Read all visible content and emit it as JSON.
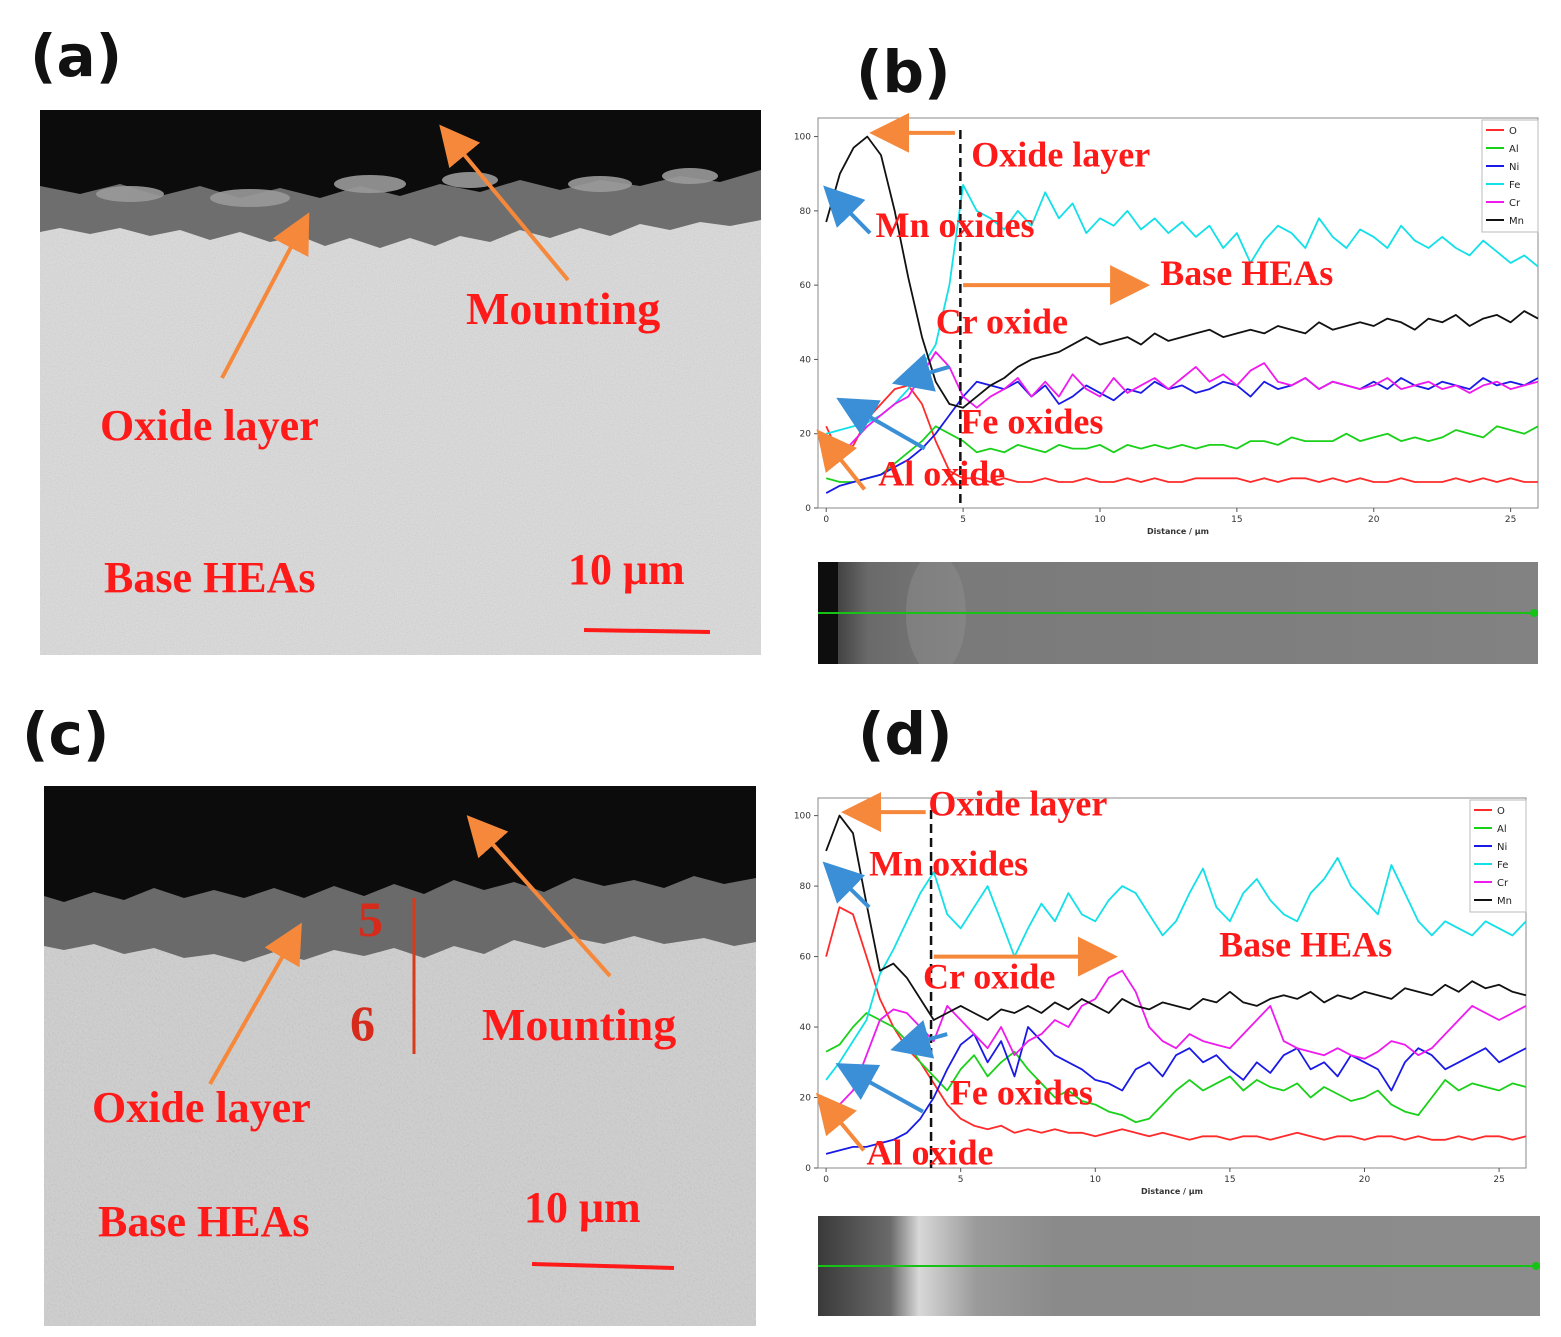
{
  "panels": {
    "a": {
      "label": "(a)",
      "annotations": {
        "mounting": "Mounting",
        "oxide_layer": "Oxide layer",
        "base": "Base HEAs",
        "scale": "10 μm"
      }
    },
    "b": {
      "label": "(b)"
    },
    "c": {
      "label": "(c)",
      "annotations": {
        "mounting": "Mounting",
        "oxide_layer": "Oxide layer",
        "base": "Base HEAs",
        "scale": "10 μm",
        "point5": "5",
        "point6": "6"
      }
    },
    "d": {
      "label": "(d)"
    }
  },
  "colors": {
    "annotation": "#ff1a1a",
    "arrow_orange": "#f5883a",
    "arrow_blue": "#3a8fd6"
  },
  "chart_data": [
    {
      "type": "line",
      "panel": "b",
      "xlabel": "Distance / μm",
      "ylabel": "",
      "xlim": [
        -0.3,
        26
      ],
      "ylim": [
        0,
        105
      ],
      "xticks": [
        0,
        5,
        10,
        15,
        20,
        25
      ],
      "yticks": [
        0,
        20,
        40,
        60,
        80,
        100
      ],
      "boundary_x": 4.9,
      "legend_position": "top-right",
      "x": [
        0,
        0.5,
        1,
        1.5,
        2,
        2.5,
        3,
        3.5,
        4,
        4.5,
        5,
        5.5,
        6,
        6.5,
        7,
        7.5,
        8,
        8.5,
        9,
        9.5,
        10,
        10.5,
        11,
        11.5,
        12,
        12.5,
        13,
        13.5,
        14,
        14.5,
        15,
        15.5,
        16,
        16.5,
        17,
        17.5,
        18,
        18.5,
        19,
        19.5,
        20,
        20.5,
        21,
        21.5,
        22,
        22.5,
        23,
        23.5,
        24,
        24.5,
        25,
        25.5,
        26
      ],
      "series": [
        {
          "name": "O",
          "color": "#ff2a2a",
          "values": [
            22,
            14,
            17,
            24,
            28,
            32,
            33,
            28,
            18,
            10,
            8,
            8,
            7,
            8,
            7,
            7,
            8,
            7,
            7,
            8,
            7,
            7,
            8,
            7,
            8,
            7,
            7,
            8,
            8,
            8,
            8,
            7,
            8,
            7,
            8,
            8,
            7,
            8,
            7,
            8,
            7,
            7,
            8,
            7,
            7,
            7,
            8,
            7,
            8,
            7,
            8,
            7,
            7
          ]
        },
        {
          "name": "Al",
          "color": "#1ad11a",
          "values": [
            8,
            7,
            7,
            8,
            9,
            12,
            15,
            18,
            22,
            20,
            18,
            15,
            16,
            15,
            17,
            16,
            15,
            17,
            16,
            16,
            17,
            15,
            17,
            16,
            17,
            16,
            17,
            16,
            17,
            17,
            16,
            18,
            18,
            17,
            19,
            18,
            18,
            18,
            20,
            18,
            19,
            20,
            18,
            19,
            18,
            19,
            21,
            20,
            19,
            22,
            21,
            20,
            22
          ]
        },
        {
          "name": "Ni",
          "color": "#1a1ae6",
          "values": [
            4,
            6,
            7,
            8,
            9,
            11,
            13,
            16,
            20,
            25,
            30,
            34,
            33,
            32,
            34,
            30,
            33,
            28,
            30,
            33,
            31,
            29,
            32,
            31,
            34,
            32,
            33,
            31,
            32,
            34,
            33,
            30,
            34,
            32,
            33,
            35,
            32,
            34,
            33,
            32,
            34,
            32,
            35,
            33,
            32,
            34,
            33,
            32,
            35,
            33,
            34,
            33,
            35
          ]
        },
        {
          "name": "Fe",
          "color": "#12e0e8",
          "values": [
            20,
            21,
            22,
            23,
            25,
            28,
            32,
            38,
            44,
            60,
            87,
            80,
            78,
            75,
            80,
            76,
            85,
            78,
            82,
            74,
            78,
            76,
            80,
            75,
            78,
            74,
            77,
            73,
            76,
            70,
            74,
            66,
            72,
            76,
            74,
            70,
            78,
            73,
            70,
            75,
            73,
            70,
            76,
            72,
            70,
            73,
            70,
            68,
            72,
            69,
            66,
            68,
            65
          ]
        },
        {
          "name": "Cr",
          "color": "#ee1aee",
          "values": [
            12,
            14,
            18,
            22,
            25,
            28,
            30,
            36,
            42,
            38,
            30,
            27,
            30,
            32,
            35,
            30,
            34,
            30,
            36,
            32,
            30,
            35,
            31,
            33,
            35,
            32,
            35,
            38,
            34,
            36,
            33,
            37,
            39,
            34,
            33,
            35,
            32,
            34,
            33,
            32,
            33,
            35,
            32,
            33,
            34,
            32,
            33,
            31,
            33,
            34,
            32,
            33,
            34
          ]
        },
        {
          "name": "Mn",
          "color": "#111111",
          "values": [
            77,
            90,
            97,
            100,
            95,
            80,
            62,
            46,
            34,
            28,
            27,
            30,
            33,
            35,
            38,
            40,
            41,
            42,
            44,
            46,
            44,
            45,
            46,
            44,
            47,
            45,
            46,
            47,
            48,
            46,
            47,
            48,
            47,
            49,
            48,
            47,
            50,
            48,
            49,
            50,
            49,
            51,
            50,
            48,
            51,
            50,
            52,
            49,
            51,
            52,
            50,
            53,
            51
          ]
        }
      ],
      "annotations": [
        {
          "text": "Oxide layer",
          "x": 5.3,
          "y": 92
        },
        {
          "text": "Mn oxides",
          "x": 1.8,
          "y": 73
        },
        {
          "text": "Base HEAs",
          "x": 12.2,
          "y": 60
        },
        {
          "text": "Cr oxide",
          "x": 4.0,
          "y": 47
        },
        {
          "text": "Fe oxides",
          "x": 4.9,
          "y": 20
        },
        {
          "text": "Al oxide",
          "x": 1.9,
          "y": 6
        }
      ]
    },
    {
      "type": "line",
      "panel": "d",
      "xlabel": "Distance / μm",
      "ylabel": "",
      "xlim": [
        -0.3,
        26
      ],
      "ylim": [
        0,
        105
      ],
      "xticks": [
        0,
        5,
        10,
        15,
        20,
        25
      ],
      "yticks": [
        0,
        20,
        40,
        60,
        80,
        100
      ],
      "boundary_x": 3.9,
      "legend_position": "top-right",
      "x": [
        0,
        0.5,
        1,
        1.5,
        2,
        2.5,
        3,
        3.5,
        4,
        4.5,
        5,
        5.5,
        6,
        6.5,
        7,
        7.5,
        8,
        8.5,
        9,
        9.5,
        10,
        10.5,
        11,
        11.5,
        12,
        12.5,
        13,
        13.5,
        14,
        14.5,
        15,
        15.5,
        16,
        16.5,
        17,
        17.5,
        18,
        18.5,
        19,
        19.5,
        20,
        20.5,
        21,
        21.5,
        22,
        22.5,
        23,
        23.5,
        24,
        24.5,
        25,
        25.5,
        26
      ],
      "series": [
        {
          "name": "O",
          "color": "#ff2a2a",
          "values": [
            60,
            74,
            72,
            60,
            48,
            40,
            34,
            30,
            24,
            18,
            14,
            12,
            11,
            12,
            10,
            11,
            10,
            11,
            10,
            10,
            9,
            10,
            11,
            10,
            9,
            10,
            9,
            8,
            9,
            9,
            8,
            9,
            9,
            8,
            9,
            10,
            9,
            8,
            9,
            9,
            8,
            9,
            9,
            8,
            9,
            8,
            8,
            9,
            8,
            9,
            9,
            8,
            9
          ]
        },
        {
          "name": "Al",
          "color": "#1ad11a",
          "values": [
            33,
            35,
            40,
            44,
            42,
            40,
            36,
            30,
            26,
            22,
            28,
            32,
            26,
            30,
            33,
            28,
            24,
            20,
            22,
            19,
            18,
            16,
            15,
            13,
            14,
            18,
            22,
            25,
            22,
            24,
            26,
            22,
            25,
            23,
            22,
            24,
            20,
            23,
            21,
            19,
            20,
            22,
            18,
            16,
            15,
            20,
            25,
            22,
            24,
            23,
            22,
            24,
            23
          ]
        },
        {
          "name": "Ni",
          "color": "#1a1ae6",
          "values": [
            4,
            5,
            6,
            6,
            7,
            8,
            10,
            14,
            20,
            28,
            35,
            38,
            30,
            36,
            26,
            40,
            36,
            32,
            30,
            28,
            25,
            24,
            22,
            28,
            30,
            26,
            32,
            34,
            30,
            32,
            28,
            25,
            30,
            27,
            32,
            34,
            28,
            30,
            26,
            32,
            30,
            28,
            22,
            30,
            34,
            32,
            28,
            30,
            32,
            34,
            30,
            32,
            34
          ]
        },
        {
          "name": "Fe",
          "color": "#12e0e8",
          "values": [
            25,
            30,
            36,
            42,
            55,
            62,
            70,
            78,
            84,
            72,
            68,
            74,
            80,
            70,
            60,
            68,
            75,
            70,
            78,
            72,
            70,
            76,
            80,
            78,
            72,
            66,
            70,
            78,
            85,
            74,
            70,
            78,
            82,
            76,
            72,
            70,
            78,
            82,
            88,
            80,
            76,
            72,
            86,
            78,
            70,
            66,
            70,
            68,
            66,
            70,
            68,
            66,
            70
          ]
        },
        {
          "name": "Cr",
          "color": "#ee1aee",
          "values": [
            15,
            18,
            22,
            32,
            42,
            45,
            44,
            40,
            36,
            46,
            42,
            38,
            34,
            40,
            32,
            36,
            38,
            42,
            40,
            46,
            48,
            54,
            56,
            50,
            40,
            36,
            34,
            38,
            36,
            35,
            34,
            38,
            42,
            46,
            36,
            34,
            33,
            32,
            34,
            32,
            31,
            33,
            36,
            35,
            32,
            34,
            38,
            42,
            46,
            44,
            42,
            44,
            46
          ]
        },
        {
          "name": "Mn",
          "color": "#111111",
          "values": [
            90,
            100,
            95,
            75,
            56,
            58,
            54,
            48,
            42,
            44,
            46,
            44,
            42,
            45,
            44,
            46,
            44,
            47,
            45,
            48,
            46,
            44,
            48,
            46,
            45,
            47,
            46,
            45,
            48,
            47,
            50,
            47,
            46,
            48,
            49,
            48,
            50,
            47,
            49,
            48,
            50,
            49,
            48,
            51,
            50,
            49,
            52,
            50,
            53,
            51,
            52,
            50,
            49
          ]
        }
      ],
      "annotations": [
        {
          "text": "Oxide layer",
          "x": 3.8,
          "y": 100
        },
        {
          "text": "Mn oxides",
          "x": 1.6,
          "y": 83
        },
        {
          "text": "Base HEAs",
          "x": 14.6,
          "y": 60
        },
        {
          "text": "Cr oxide",
          "x": 3.6,
          "y": 51
        },
        {
          "text": "Fe oxides",
          "x": 4.6,
          "y": 18
        },
        {
          "text": "Al oxide",
          "x": 1.5,
          "y": 1
        }
      ]
    }
  ]
}
